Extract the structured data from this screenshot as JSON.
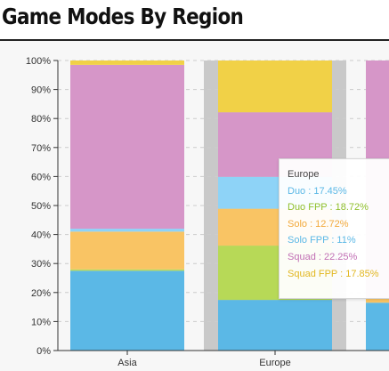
{
  "page": {
    "title": "Game Modes By Region"
  },
  "chart_data": {
    "type": "bar",
    "stacked": "percent",
    "title": "Game Modes By Region",
    "categories": [
      "Asia",
      "Europe",
      ""
    ],
    "ylim": [
      0,
      100
    ],
    "y_ticks": [
      "0%",
      "10%",
      "20%",
      "30%",
      "40%",
      "50%",
      "60%",
      "70%",
      "80%",
      "90%",
      "100%"
    ],
    "grid": true,
    "series": [
      {
        "name": "Duo",
        "color": "#5bb8e6",
        "values": [
          27.5,
          17.45,
          16.5
        ]
      },
      {
        "name": "Duo FPP",
        "color": "#b7d957",
        "values": [
          0.5,
          18.72,
          0
        ]
      },
      {
        "name": "Solo",
        "color": "#f9c464",
        "values": [
          13,
          12.72,
          1.5
        ]
      },
      {
        "name": "Solo FPP",
        "color": "#8ed3f7",
        "values": [
          1,
          11,
          0
        ]
      },
      {
        "name": "Squad",
        "color": "#d696c8",
        "values": [
          56.5,
          22.25,
          82
        ]
      },
      {
        "name": "Squad FPP",
        "color": "#f1d147",
        "values": [
          1.5,
          17.85,
          0
        ]
      }
    ],
    "highlight_index": 1
  },
  "tooltip": {
    "title": "Europe",
    "rows": [
      {
        "text": "Duo : 17.45%",
        "color": "#5bb8e6"
      },
      {
        "text": "Duo FPP : 18.72%",
        "color": "#8fbf2b"
      },
      {
        "text": "Solo : 12.72%",
        "color": "#f2a93b"
      },
      {
        "text": "Solo FPP : 11%",
        "color": "#5bb8e6"
      },
      {
        "text": "Squad : 22.25%",
        "color": "#c16fb4"
      },
      {
        "text": "Squad FPP : 17.85%",
        "color": "#e2b721"
      }
    ]
  },
  "colors": {
    "highlight_band": "#c9c9c9",
    "axis": "#333333",
    "grid": "#cccccc"
  }
}
